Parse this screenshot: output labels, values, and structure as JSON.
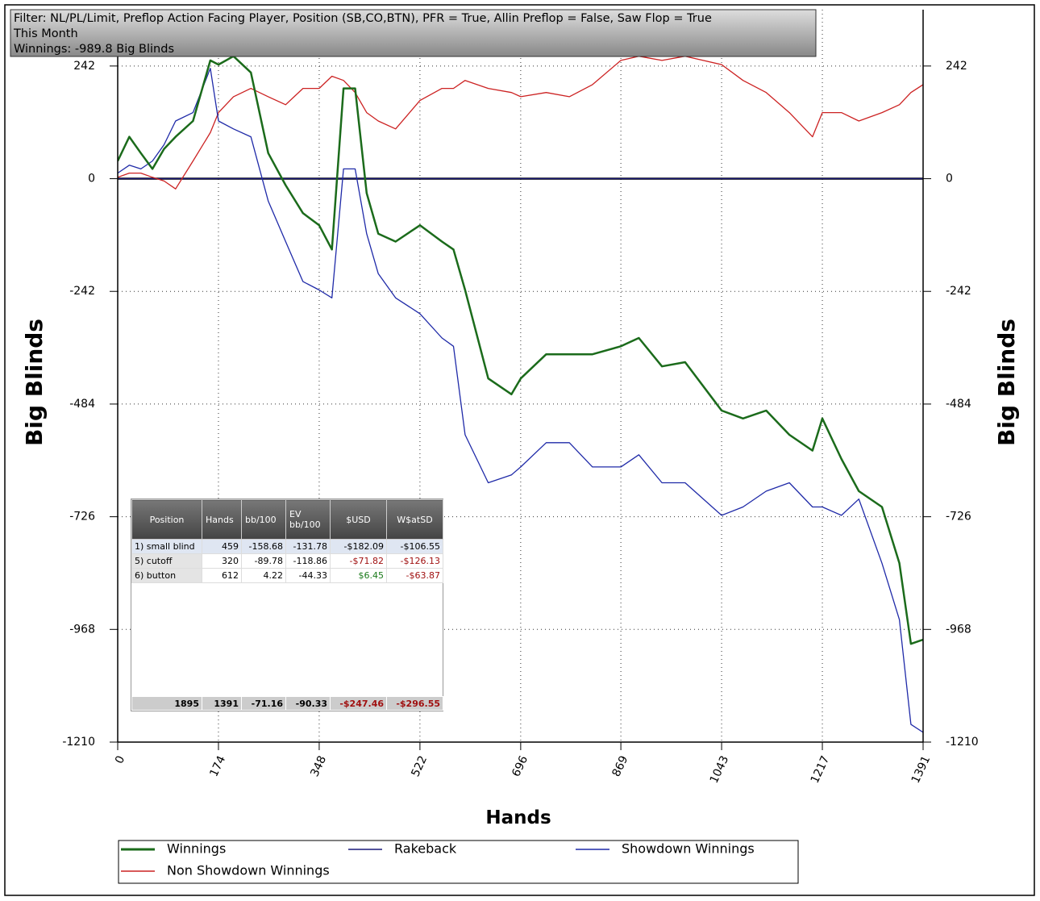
{
  "filter_box": {
    "lines": [
      "Filter: NL/PL/Limit, Preflop Action Facing Player, Position (SB,CO,BTN), PFR = True, Allin Preflop = False, Saw Flop = True",
      "This Month",
      "Winnings: -989.8 Big Blinds"
    ]
  },
  "chart_data": {
    "type": "line",
    "y_label": "Big Blinds",
    "x_label": "Hands",
    "x": [
      0,
      20,
      40,
      60,
      80,
      100,
      130,
      160,
      174,
      200,
      230,
      260,
      290,
      320,
      348,
      370,
      390,
      410,
      430,
      450,
      480,
      522,
      560,
      580,
      600,
      640,
      680,
      696,
      740,
      780,
      820,
      869,
      900,
      940,
      980,
      1043,
      1080,
      1120,
      1160,
      1200,
      1217,
      1250,
      1280,
      1320,
      1350,
      1370,
      1391
    ],
    "xlim": [
      0,
      1391
    ],
    "xticks": [
      0,
      174,
      348,
      522,
      696,
      869,
      1043,
      1217,
      1391
    ],
    "ylim": [
      -1210,
      363
    ],
    "yticks": [
      242,
      0,
      -242,
      -484,
      -726,
      -968,
      -1210
    ],
    "grid": true,
    "series": [
      {
        "name": "Winnings",
        "color": "#1b6b1b",
        "values": [
          38,
          90,
          55,
          21,
          64,
          90,
          124,
          254,
          245,
          263,
          228,
          55,
          -14,
          -74,
          -100,
          -152,
          194,
          194,
          -31,
          -118,
          -135,
          -100,
          -135,
          -152,
          -239,
          -429,
          -463,
          -429,
          -377,
          -377,
          -377,
          -360,
          -342,
          -403,
          -394,
          -498,
          -515,
          -498,
          -550,
          -584,
          -515,
          -602,
          -671,
          -705,
          -826,
          -999,
          -990
        ]
      },
      {
        "name": "Rakeback",
        "color": "#1a1a7a",
        "values": [
          0,
          0,
          0,
          0,
          0,
          0,
          0,
          0,
          0,
          0,
          0,
          0,
          0,
          0,
          0,
          0,
          0,
          0,
          0,
          0,
          0,
          0,
          0,
          0,
          0,
          0,
          0,
          0,
          0,
          0,
          0,
          0,
          0,
          0,
          0,
          0,
          0,
          0,
          0,
          0,
          0,
          0,
          0,
          0,
          0,
          0,
          0
        ]
      },
      {
        "name": "Showdown Winnings",
        "color": "#1f2aa8",
        "values": [
          12,
          29,
          21,
          38,
          73,
          124,
          142,
          237,
          124,
          107,
          90,
          -48,
          -135,
          -221,
          -239,
          -256,
          21,
          21,
          -118,
          -204,
          -256,
          -290,
          -342,
          -360,
          -550,
          -653,
          -636,
          -619,
          -567,
          -567,
          -619,
          -619,
          -593,
          -653,
          -653,
          -723,
          -705,
          -671,
          -653,
          -705,
          -705,
          -723,
          -688,
          -826,
          -947,
          -1172,
          -1189
        ]
      },
      {
        "name": "Non Showdown Winnings",
        "color": "#cc2222",
        "values": [
          3,
          12,
          12,
          3,
          -5,
          -22,
          38,
          99,
          142,
          176,
          194,
          176,
          159,
          194,
          194,
          220,
          211,
          185,
          142,
          124,
          107,
          168,
          194,
          194,
          211,
          194,
          185,
          176,
          185,
          176,
          202,
          254,
          263,
          254,
          263,
          245,
          211,
          185,
          142,
          90,
          142,
          142,
          124,
          142,
          159,
          185,
          202
        ]
      }
    ]
  },
  "stats_table": {
    "columns": [
      "Position",
      "Hands",
      "bb/100",
      "EV bb/100",
      "$USD",
      "W$atSD"
    ],
    "rows": [
      [
        "1) small blind",
        "459",
        "-158.68",
        "-131.78",
        "-$182.09",
        "-$106.55"
      ],
      [
        "5) cutoff",
        "320",
        "-89.78",
        "-118.86",
        "-$71.82",
        "-$126.13"
      ],
      [
        "6) button",
        "612",
        "4.22",
        "-44.33",
        "$6.45",
        "-$63.87"
      ]
    ],
    "totals": [
      "1895",
      "1391",
      "-71.16",
      "-90.33",
      "-$247.46",
      "-$296.55"
    ]
  }
}
